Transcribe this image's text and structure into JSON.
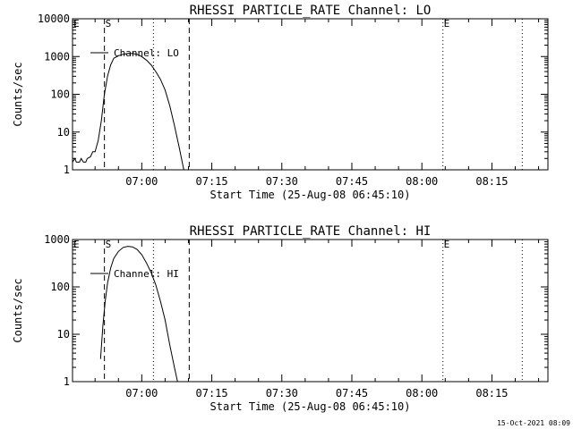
{
  "footer": {
    "timestamp": "15-Oct-2021 08:09"
  },
  "chart_data": [
    {
      "type": "line",
      "title": "RHESSI PARTICLE_RATE Channel: LO",
      "xlabel": "Start Time (25-Aug-08 06:45:10)",
      "ylabel": "Counts/sec",
      "yscale": "log",
      "ylim": [
        1,
        10000
      ],
      "yticks": [
        {
          "value": 1,
          "label": "1"
        },
        {
          "value": 10,
          "label": "10"
        },
        {
          "value": 100,
          "label": "100"
        },
        {
          "value": 1000,
          "label": "1000"
        },
        {
          "value": 10000,
          "label": "10000"
        }
      ],
      "xlim": [
        "06:45:10",
        "08:27:00"
      ],
      "xticks": [
        "07:00",
        "07:15",
        "07:30",
        "07:45",
        "08:00",
        "08:15"
      ],
      "legend": {
        "entry": "Channel: LO",
        "placement": "top-left"
      },
      "markers": [
        {
          "label": "E",
          "time": "06:45:10",
          "style": "dotted"
        },
        {
          "label": "S",
          "time": "06:52:00",
          "style": "dashed"
        },
        {
          "label": "",
          "time": "07:02:30",
          "style": "dotted"
        },
        {
          "label": "",
          "time": "07:10:10",
          "style": "dashed"
        },
        {
          "label": "E",
          "time": "08:04:30",
          "style": "dotted"
        },
        {
          "label": "",
          "time": "08:21:30",
          "style": "dotted"
        }
      ],
      "series": [
        {
          "values": [
            {
              "x": "06:45:10",
              "y": 1.6
            },
            {
              "x": "06:45:40",
              "y": 2
            },
            {
              "x": "06:46:00",
              "y": 1.6
            },
            {
              "x": "06:46:40",
              "y": 1.6
            },
            {
              "x": "06:47:00",
              "y": 2
            },
            {
              "x": "06:47:30",
              "y": 1.6
            },
            {
              "x": "06:48:00",
              "y": 1.6
            },
            {
              "x": "06:48:20",
              "y": 2
            },
            {
              "x": "06:49:00",
              "y": 2.2
            },
            {
              "x": "06:49:30",
              "y": 3
            },
            {
              "x": "06:50:00",
              "y": 3
            },
            {
              "x": "06:50:40",
              "y": 6
            },
            {
              "x": "06:51:20",
              "y": 20
            },
            {
              "x": "06:52:00",
              "y": 100
            },
            {
              "x": "06:52:40",
              "y": 300
            },
            {
              "x": "06:53:20",
              "y": 600
            },
            {
              "x": "06:54:00",
              "y": 900
            },
            {
              "x": "06:55:00",
              "y": 1050
            },
            {
              "x": "06:56:00",
              "y": 1150
            },
            {
              "x": "06:57:00",
              "y": 1200
            },
            {
              "x": "06:58:00",
              "y": 1200
            },
            {
              "x": "06:59:00",
              "y": 1150
            },
            {
              "x": "07:00:00",
              "y": 1000
            },
            {
              "x": "07:01:00",
              "y": 800
            },
            {
              "x": "07:02:00",
              "y": 600
            },
            {
              "x": "07:03:00",
              "y": 400
            },
            {
              "x": "07:04:00",
              "y": 250
            },
            {
              "x": "07:05:00",
              "y": 130
            },
            {
              "x": "07:06:00",
              "y": 50
            },
            {
              "x": "07:07:00",
              "y": 15
            },
            {
              "x": "07:08:00",
              "y": 4
            },
            {
              "x": "07:09:00",
              "y": 1
            }
          ]
        }
      ]
    },
    {
      "type": "line",
      "title": "RHESSI PARTICLE_RATE Channel: HI",
      "xlabel": "Start Time (25-Aug-08 06:45:10)",
      "ylabel": "Counts/sec",
      "yscale": "log",
      "ylim": [
        1,
        1000
      ],
      "yticks": [
        {
          "value": 1,
          "label": "1"
        },
        {
          "value": 10,
          "label": "10"
        },
        {
          "value": 100,
          "label": "100"
        },
        {
          "value": 1000,
          "label": "1000"
        }
      ],
      "xlim": [
        "06:45:10",
        "08:27:00"
      ],
      "xticks": [
        "07:00",
        "07:15",
        "07:30",
        "07:45",
        "08:00",
        "08:15"
      ],
      "legend": {
        "entry": "Channel: HI",
        "placement": "top-left"
      },
      "markers": [
        {
          "label": "E",
          "time": "06:45:10",
          "style": "dotted"
        },
        {
          "label": "S",
          "time": "06:52:00",
          "style": "dashed"
        },
        {
          "label": "",
          "time": "07:02:30",
          "style": "dotted"
        },
        {
          "label": "",
          "time": "07:10:10",
          "style": "dashed"
        },
        {
          "label": "E",
          "time": "08:04:30",
          "style": "dotted"
        },
        {
          "label": "",
          "time": "08:21:30",
          "style": "dotted"
        }
      ],
      "series": [
        {
          "values": [
            {
              "x": "06:51:10",
              "y": 3
            },
            {
              "x": "06:51:40",
              "y": 15
            },
            {
              "x": "06:52:10",
              "y": 50
            },
            {
              "x": "06:52:40",
              "y": 120
            },
            {
              "x": "06:53:20",
              "y": 250
            },
            {
              "x": "06:54:00",
              "y": 400
            },
            {
              "x": "06:55:00",
              "y": 560
            },
            {
              "x": "06:56:00",
              "y": 680
            },
            {
              "x": "06:57:00",
              "y": 720
            },
            {
              "x": "06:58:00",
              "y": 700
            },
            {
              "x": "06:59:00",
              "y": 620
            },
            {
              "x": "07:00:00",
              "y": 480
            },
            {
              "x": "07:01:00",
              "y": 320
            },
            {
              "x": "07:02:00",
              "y": 200
            },
            {
              "x": "07:03:00",
              "y": 110
            },
            {
              "x": "07:04:00",
              "y": 50
            },
            {
              "x": "07:05:00",
              "y": 20
            },
            {
              "x": "07:06:00",
              "y": 6
            },
            {
              "x": "07:07:00",
              "y": 2
            },
            {
              "x": "07:07:40",
              "y": 1
            }
          ]
        }
      ]
    }
  ]
}
